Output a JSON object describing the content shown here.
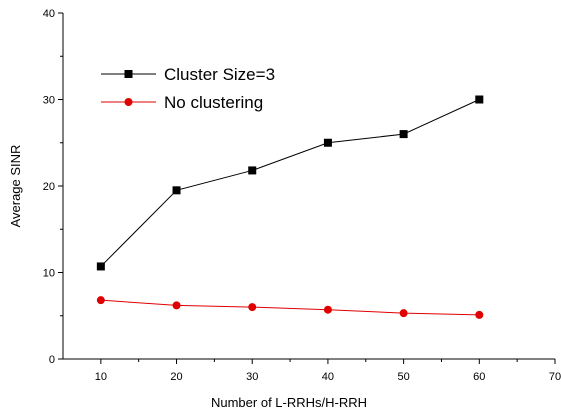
{
  "chart_data": {
    "type": "line",
    "title": "",
    "xlabel": "Number of L-RRHs/H-RRH",
    "ylabel": "Average SINR",
    "xlim": [
      5,
      70
    ],
    "ylim": [
      0,
      40
    ],
    "x_ticks": [
      10,
      20,
      30,
      40,
      50,
      60,
      70
    ],
    "y_ticks": [
      0,
      10,
      20,
      30,
      40
    ],
    "grid": false,
    "legend_position": "upper-left",
    "x": [
      10,
      20,
      30,
      40,
      50,
      60
    ],
    "series": [
      {
        "name": "Cluster Size=3",
        "values": [
          10.7,
          19.5,
          21.8,
          25.0,
          26.0,
          30.0
        ],
        "color": "#000000",
        "marker": "square"
      },
      {
        "name": "No clustering",
        "values": [
          6.8,
          6.2,
          6.0,
          5.7,
          5.3,
          5.1
        ],
        "color": "#e00000",
        "marker": "circle"
      }
    ]
  }
}
